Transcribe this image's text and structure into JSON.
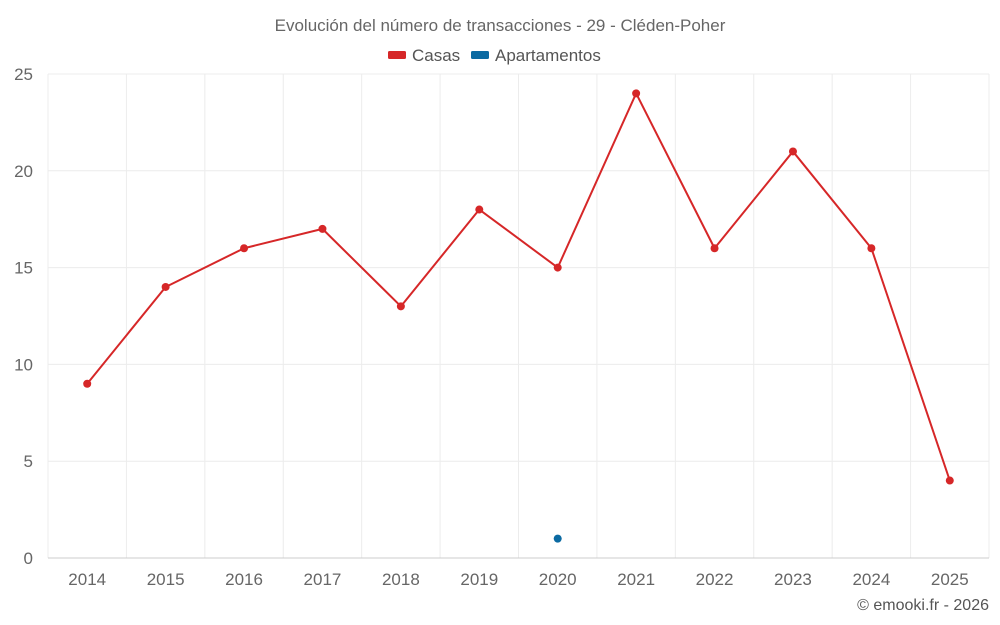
{
  "chart_data": {
    "type": "line",
    "title": "Evolución del número de transacciones - 29 - Cléden-Poher",
    "categories": [
      "2014",
      "2015",
      "2016",
      "2017",
      "2018",
      "2019",
      "2020",
      "2021",
      "2022",
      "2023",
      "2024",
      "2025"
    ],
    "series": [
      {
        "name": "Casas",
        "color": "#d62728",
        "values": [
          9,
          14,
          16,
          17,
          13,
          18,
          15,
          24,
          16,
          21,
          16,
          4
        ]
      },
      {
        "name": "Apartamentos",
        "color": "#0b6aa2",
        "values": [
          null,
          null,
          null,
          null,
          null,
          null,
          1,
          null,
          null,
          null,
          null,
          null
        ]
      }
    ],
    "ylim": [
      0,
      25
    ],
    "yticks": [
      0,
      5,
      10,
      15,
      20,
      25
    ],
    "grid": true,
    "legend_position": "top-center"
  },
  "credit": "© emooki.fr - 2026"
}
